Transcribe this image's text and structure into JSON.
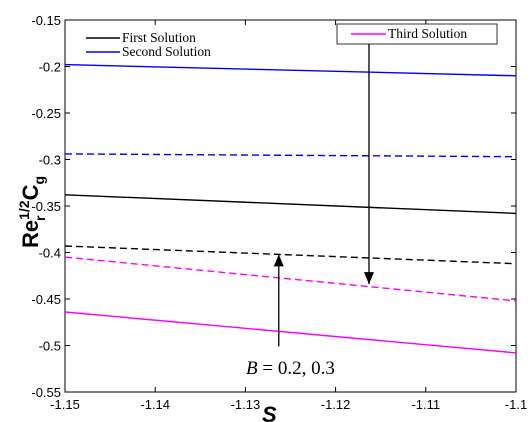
{
  "chart_data": {
    "type": "line",
    "xlabel": "S",
    "ylabel": {
      "main": "Re",
      "sup": "1/2",
      "sub_r": "r",
      "tail": "C",
      "sub_g": "g"
    },
    "xlim": [
      -1.15,
      -1.1
    ],
    "ylim": [
      -0.55,
      -0.15
    ],
    "xticks": [
      -1.15,
      -1.14,
      -1.13,
      -1.12,
      -1.11,
      -1.1
    ],
    "xtick_labels": [
      "-1.15",
      "-1.14",
      "-1.13",
      "-1.12",
      "-1.11",
      "-1.1"
    ],
    "yticks": [
      -0.55,
      -0.5,
      -0.45,
      -0.4,
      -0.35,
      -0.3,
      -0.25,
      -0.2,
      -0.15
    ],
    "ytick_labels": [
      "-0.55",
      "-0.5",
      "-0.45",
      "-0.4",
      "-0.35",
      "-0.3",
      "-0.25",
      "-0.2",
      "-0.15"
    ],
    "grid": false,
    "series": [
      {
        "name": "First Solution",
        "color": "#000000",
        "dash": "solid",
        "x": [
          -1.15,
          -1.1
        ],
        "y": [
          -0.338,
          -0.358
        ]
      },
      {
        "name": "First Solution",
        "color": "#000000",
        "dash": "dashed",
        "x": [
          -1.15,
          -1.1
        ],
        "y": [
          -0.393,
          -0.412
        ]
      },
      {
        "name": "Second Solution",
        "color": "#0000ff",
        "dash": "solid",
        "x": [
          -1.15,
          -1.1
        ],
        "y": [
          -0.198,
          -0.21
        ]
      },
      {
        "name": "Second Solution",
        "color": "#0000ff",
        "dash": "dashed",
        "x": [
          -1.15,
          -1.1
        ],
        "y": [
          -0.294,
          -0.297
        ]
      },
      {
        "name": "Third Solution",
        "color": "#ff00ff",
        "dash": "solid",
        "x": [
          -1.15,
          -1.1
        ],
        "y": [
          -0.464,
          -0.508
        ]
      },
      {
        "name": "Third Solution",
        "color": "#ff00ff",
        "dash": "dashed",
        "x": [
          -1.15,
          -1.1
        ],
        "y": [
          -0.405,
          -0.452
        ]
      }
    ],
    "legend": [
      {
        "label": "First Solution",
        "color": "#000000"
      },
      {
        "label": "Second Solution",
        "color": "#0000ff"
      },
      {
        "label": "Third Solution",
        "color": "#ff00ff"
      }
    ],
    "legend_placement": "top-left and top-right",
    "annotation": {
      "math": "B",
      "eq": " = 0.2, 0.3"
    },
    "arrows": [
      {
        "direction": "down",
        "x": -1.1163,
        "y_from": -0.164,
        "y_to": -0.434
      },
      {
        "direction": "up",
        "x": -1.1263,
        "y_from": -0.501,
        "y_to": -0.402
      }
    ]
  }
}
